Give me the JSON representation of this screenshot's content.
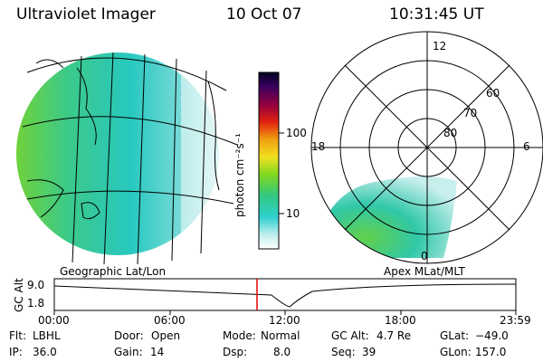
{
  "header": {
    "instrument": "Ultraviolet Imager",
    "date": "10 Oct 07",
    "time": "10:31:45 UT"
  },
  "left_panel": {
    "caption": "Geographic Lat/Lon"
  },
  "right_panel": {
    "caption": "Apex MLat/MLT",
    "mlt_labels": [
      "12",
      "18",
      "6",
      "0"
    ],
    "mlat_labels": [
      "60",
      "70",
      "80"
    ]
  },
  "colorbar": {
    "unit_label": "photon cm⁻²s⁻¹",
    "ticks": [
      "100",
      "10"
    ]
  },
  "altitude_plot": {
    "ylabel": "GC Alt",
    "y_ticks": [
      "9.0",
      "1.8"
    ],
    "x_ticks": [
      "00:00",
      "06:00",
      "12:00",
      "18:00",
      "23:59"
    ],
    "marker_time_hours": 10.53
  },
  "status": {
    "flt_label": "Flt:",
    "flt_value": "LBHL",
    "door_label": "Door:",
    "door_value": "Open",
    "mode_label": "Mode:",
    "mode_value": "Normal",
    "gcalt_label": "GC Alt:",
    "gcalt_value": "4.7 Re",
    "glat_label": "GLat:",
    "glat_value": "−49.0",
    "ip_label": "IP:",
    "ip_value": "36.0",
    "gain_label": "Gain:",
    "gain_value": "14",
    "dsp_label": "Dsp:",
    "dsp_value": "8.0",
    "seq_label": "Seq:",
    "seq_value": "39",
    "glon_label": "GLon:",
    "glon_value": "157.0"
  }
}
